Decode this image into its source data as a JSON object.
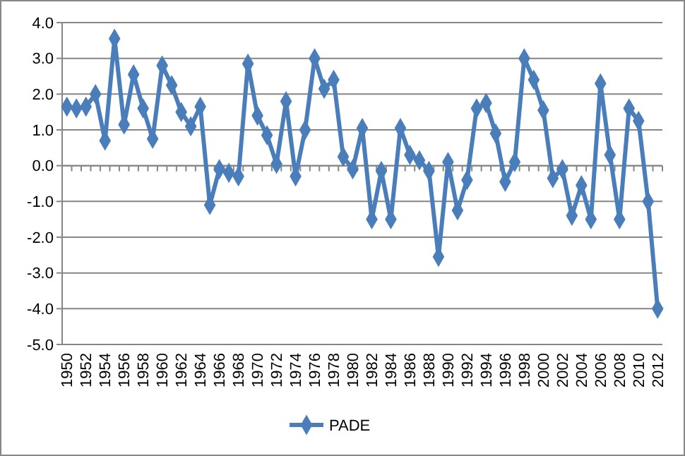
{
  "chart_data": {
    "type": "line",
    "categories": [
      "1950",
      null,
      "1952",
      null,
      "1954",
      null,
      "1956",
      null,
      "1958",
      null,
      "1960",
      null,
      "1962",
      null,
      "1964",
      null,
      "1966",
      null,
      "1968",
      null,
      "1970",
      null,
      "1972",
      null,
      "1974",
      null,
      "1976",
      null,
      "1978",
      null,
      "1980",
      null,
      "1982",
      null,
      "1984",
      null,
      "1986",
      null,
      "1988",
      null,
      "1990",
      null,
      "1992",
      null,
      "1994",
      null,
      "1996",
      null,
      "1998",
      null,
      "2000",
      null,
      "2002",
      null,
      "2004",
      null,
      "2006",
      null,
      "2008",
      null,
      "2010",
      null,
      "2012"
    ],
    "series": [
      {
        "name": "PADE",
        "color": "#4a7ebb",
        "values": [
          1.65,
          1.6,
          1.65,
          2.0,
          0.7,
          3.55,
          1.15,
          2.55,
          1.6,
          0.75,
          2.8,
          2.25,
          1.5,
          1.1,
          1.65,
          -1.1,
          -0.1,
          -0.2,
          -0.3,
          2.85,
          1.4,
          0.85,
          0.05,
          1.8,
          -0.3,
          1.0,
          3.0,
          2.15,
          2.4,
          0.25,
          -0.1,
          1.05,
          -1.5,
          -0.15,
          -1.5,
          1.05,
          0.3,
          0.15,
          -0.15,
          -2.55,
          0.1,
          -1.25,
          -0.4,
          1.6,
          1.75,
          0.9,
          -0.45,
          0.1,
          3.0,
          2.4,
          1.55,
          -0.35,
          -0.1,
          -1.4,
          -0.55,
          -1.5,
          2.3,
          0.3,
          -1.5,
          1.6,
          1.25,
          -1.0,
          -4.0
        ]
      }
    ],
    "ylim": [
      -5,
      4
    ],
    "yticks": [
      {
        "value": -5,
        "label": "-5.0"
      },
      {
        "value": -4,
        "label": "-4.0"
      },
      {
        "value": -3,
        "label": "-3.0"
      },
      {
        "value": -2,
        "label": "-2.0"
      },
      {
        "value": -1,
        "label": "-1.0"
      },
      {
        "value": 0,
        "label": "0.0"
      },
      {
        "value": 1,
        "label": "1.0"
      },
      {
        "value": 2,
        "label": "2.0"
      },
      {
        "value": 3,
        "label": "3.0"
      },
      {
        "value": 4,
        "label": "4.0"
      }
    ],
    "grid": "y",
    "legend": "bottom",
    "marker": "diamond",
    "line_style": "solid"
  }
}
